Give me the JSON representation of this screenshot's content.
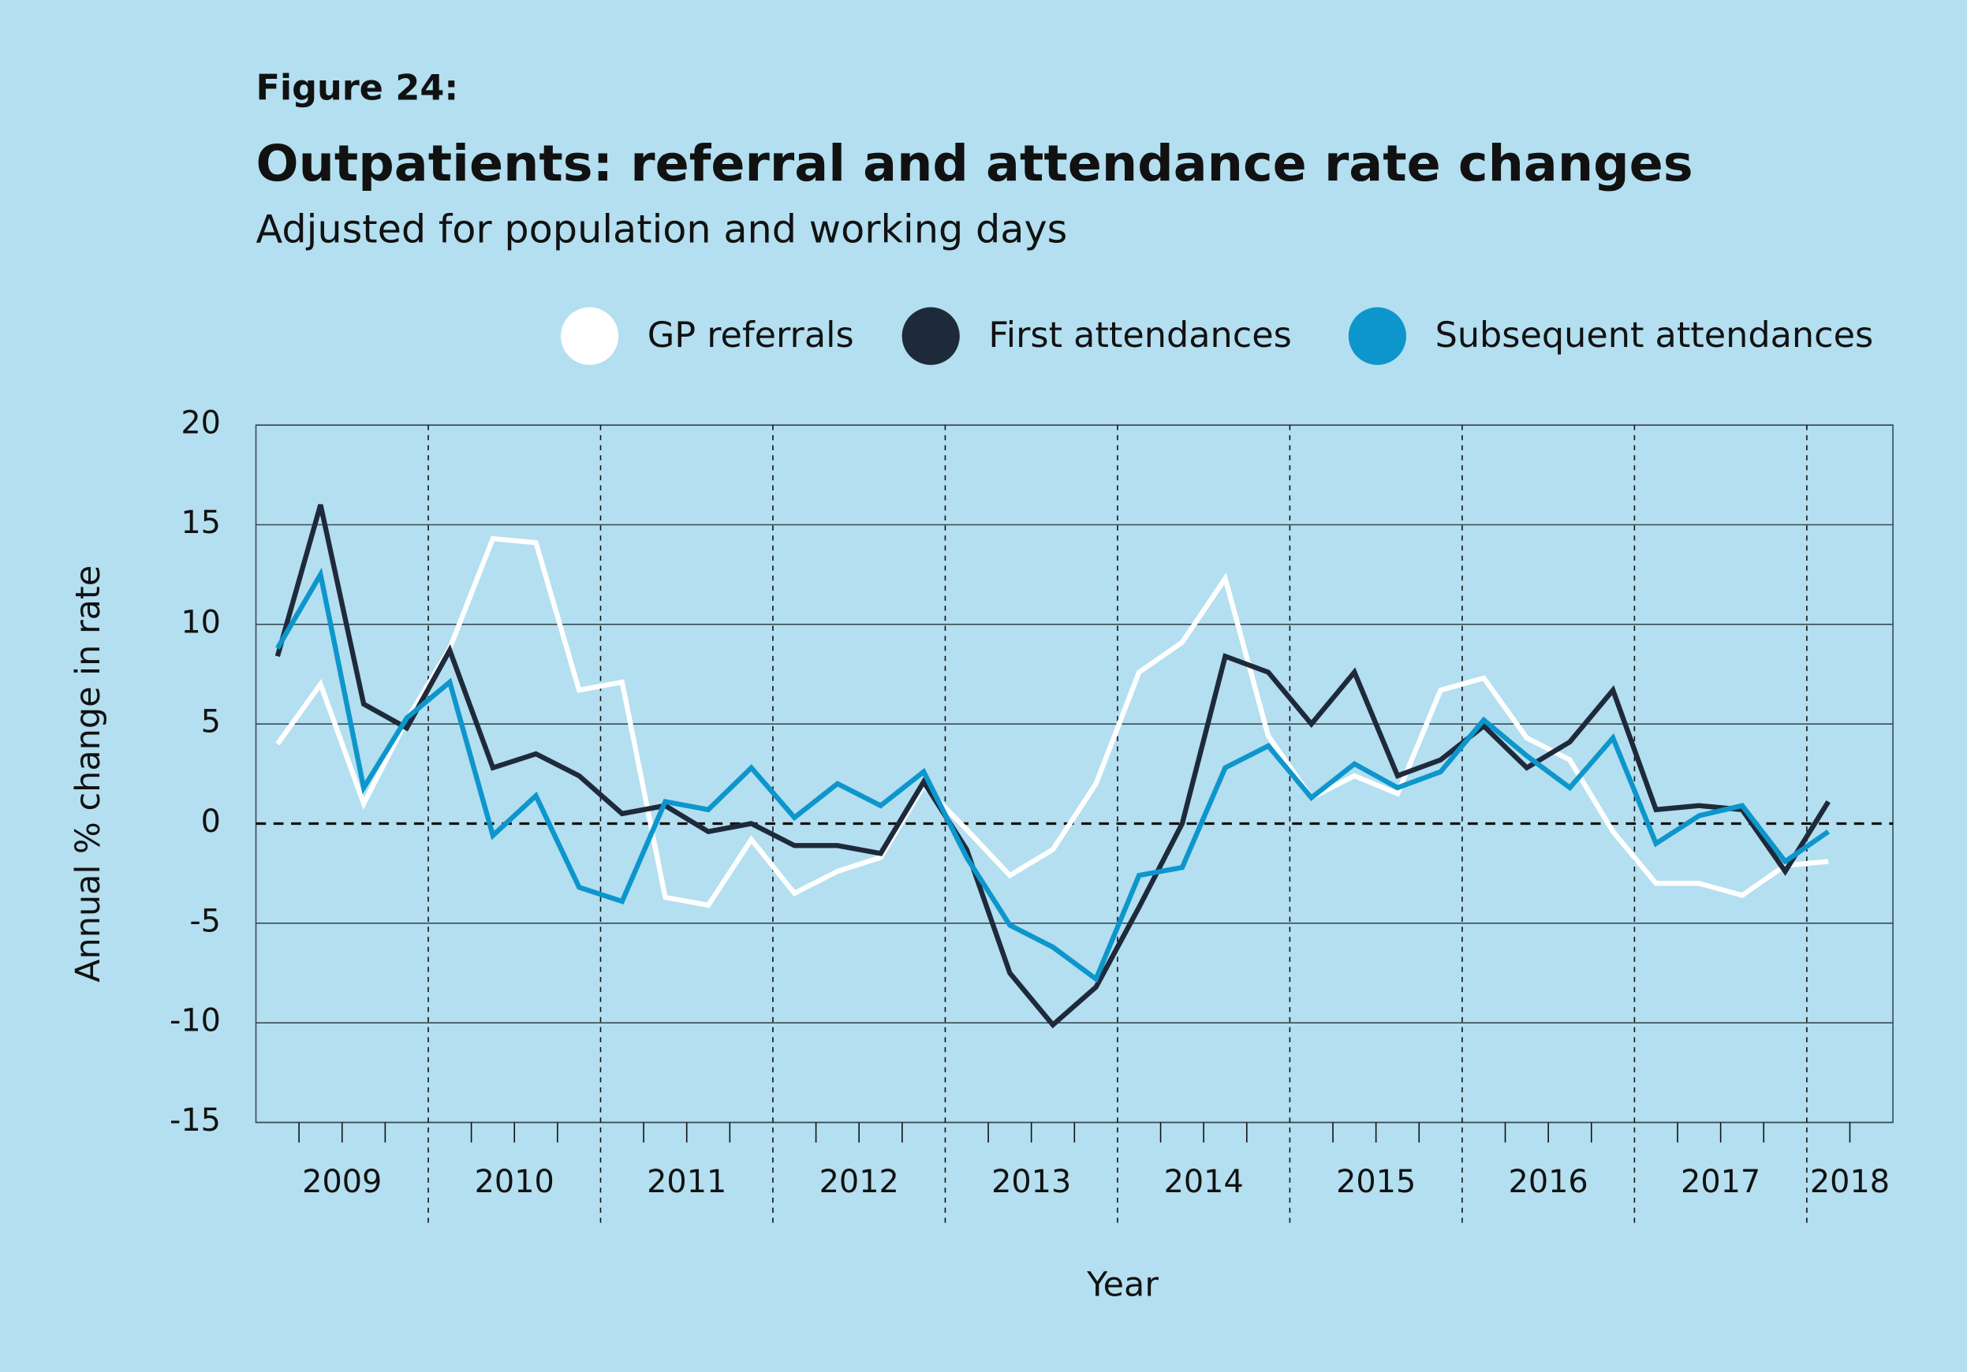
{
  "chart_data": {
    "type": "line",
    "figure_label": "Figure 24:",
    "title": "Outpatients: referral and attendance rate changes",
    "subtitle": "Adjusted for population and working days",
    "x_label": "Year",
    "y_label": "Annual % change in rate",
    "categories": [
      "2009",
      null,
      null,
      null,
      "2010",
      null,
      null,
      null,
      "2011",
      null,
      null,
      null,
      "2012",
      null,
      null,
      null,
      "2013",
      null,
      null,
      null,
      "2014",
      null,
      null,
      null,
      "2015",
      null,
      null,
      null,
      "2016",
      null,
      null,
      null,
      "2017",
      null,
      null,
      null,
      "2018"
    ],
    "series": [
      {
        "name": "GP referrals",
        "color": "#ffffff",
        "values": [
          4.0,
          7.0,
          1.0,
          5.2,
          8.8,
          14.3,
          14.1,
          6.7,
          7.1,
          -3.7,
          -4.1,
          -0.8,
          -3.5,
          -2.4,
          -1.7,
          1.9,
          -0.3,
          -2.6,
          -1.3,
          2.0,
          7.6,
          9.1,
          12.3,
          4.4,
          1.3,
          2.4,
          1.5,
          6.7,
          7.3,
          4.3,
          3.2,
          -0.4,
          -3.0,
          -3.0,
          -3.6,
          -2.1,
          -1.9
        ]
      },
      {
        "name": "First attendances",
        "color": "#1e2a3a",
        "values": [
          8.4,
          16.0,
          6.0,
          4.8,
          8.7,
          2.8,
          3.5,
          2.4,
          0.5,
          0.9,
          -0.4,
          0.0,
          -1.1,
          -1.1,
          -1.5,
          2.1,
          -1.3,
          -7.5,
          -10.1,
          -8.2,
          -4.2,
          0.0,
          8.4,
          7.6,
          5.0,
          7.6,
          2.4,
          3.2,
          4.9,
          2.8,
          4.1,
          6.7,
          0.7,
          0.9,
          0.7,
          -2.4,
          1.1
        ]
      },
      {
        "name": "Subsequent attendances",
        "color": "#0d96cc",
        "values": [
          8.8,
          12.5,
          1.8,
          5.3,
          7.1,
          -0.6,
          1.4,
          -3.2,
          -3.9,
          1.1,
          0.7,
          2.8,
          0.3,
          2.0,
          0.9,
          2.6,
          -1.7,
          -5.1,
          -6.2,
          -7.8,
          -2.6,
          -2.2,
          2.8,
          3.9,
          1.3,
          3.0,
          1.8,
          2.6,
          5.2,
          3.4,
          1.8,
          4.3,
          -1.0,
          0.4,
          0.9,
          -1.9,
          -0.4
        ]
      }
    ],
    "ylim": [
      -15,
      20
    ],
    "yticks": [
      -15,
      -10,
      -5,
      0,
      5,
      10,
      15,
      20
    ],
    "grid": true,
    "legend": "top"
  }
}
